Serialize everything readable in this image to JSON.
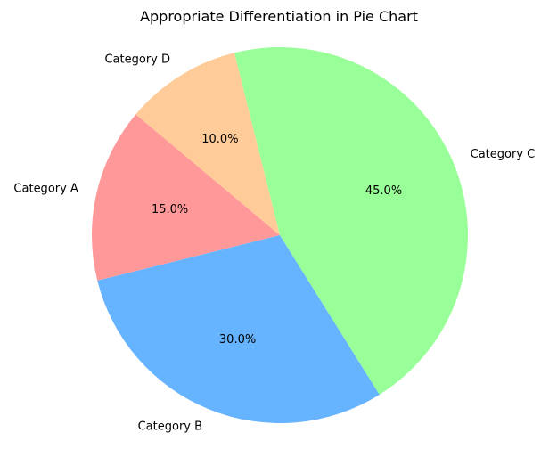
{
  "chart_data": {
    "type": "pie",
    "title": "Appropriate Differentiation in Pie Chart",
    "start_angle_deg": 140,
    "direction": "counterclockwise",
    "slices": [
      {
        "label": "Category A",
        "value": 15,
        "pct_label": "15.0%",
        "color": "#ff9999"
      },
      {
        "label": "Category B",
        "value": 30,
        "pct_label": "30.0%",
        "color": "#66b3ff"
      },
      {
        "label": "Category C",
        "value": 45,
        "pct_label": "45.0%",
        "color": "#99ff99"
      },
      {
        "label": "Category D",
        "value": 10,
        "pct_label": "10.0%",
        "color": "#ffcc99"
      }
    ]
  }
}
